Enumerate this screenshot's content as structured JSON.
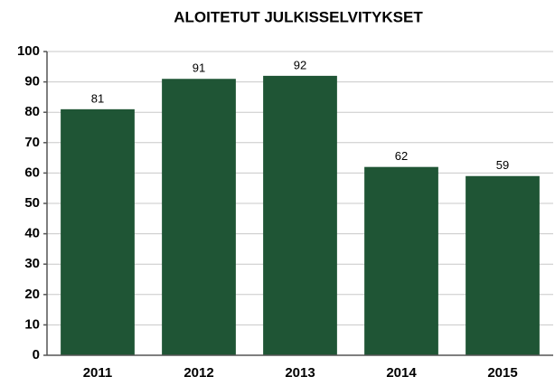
{
  "chart_data": {
    "type": "bar",
    "title": "ALOITETUT JULKISSELVITYKSET",
    "categories": [
      "2011",
      "2012",
      "2013",
      "2014",
      "2015"
    ],
    "values": [
      81,
      91,
      92,
      62,
      59
    ],
    "color": "#1f5535",
    "ylim": [
      0,
      100
    ],
    "yticks": [
      0,
      10,
      20,
      30,
      40,
      50,
      60,
      70,
      80,
      90,
      100
    ],
    "grid": true
  }
}
